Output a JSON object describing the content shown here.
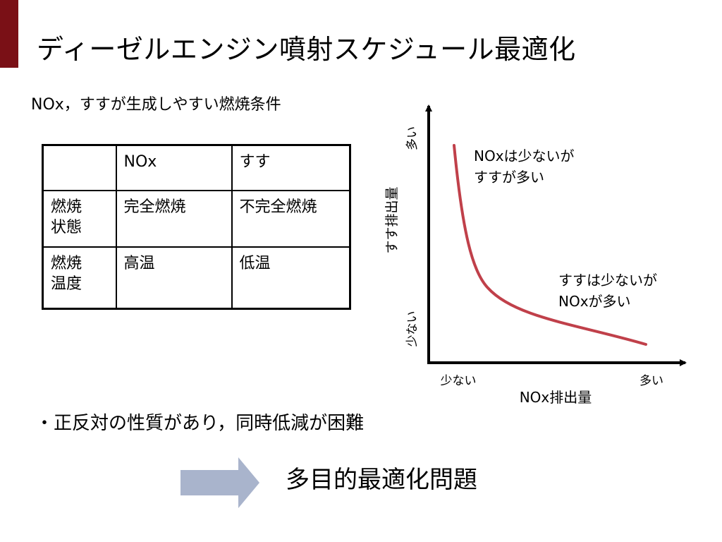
{
  "theme": {
    "accent": "#7a1016",
    "curve": "#c0404a",
    "arrow": "#a9b4cc"
  },
  "title": "ディーゼルエンジン噴射スケジュール最適化",
  "table_caption": "NOx，すすが生成しやすい燃焼条件",
  "table": {
    "headers": [
      "",
      "NOx",
      "すす"
    ],
    "rows": [
      [
        "燃焼\n状態",
        "完全燃焼",
        "不完全燃焼"
      ],
      [
        "燃焼\n温度",
        "高温",
        "低温"
      ]
    ]
  },
  "plot": {
    "x_axis_label": "NOx排出量",
    "y_axis_label": "すす排出量",
    "x_tick_low": "少ない",
    "x_tick_high": "多い",
    "y_tick_low": "少ない",
    "y_tick_high": "多い",
    "annotation_top": [
      "NOxは少ないが",
      "すすが多い"
    ],
    "annotation_bottom": [
      "すすは少ないが",
      "NOxが多い"
    ]
  },
  "bullet": "・正反対の性質があり，同時低減が困難",
  "conclusion": "多目的最適化問題"
}
